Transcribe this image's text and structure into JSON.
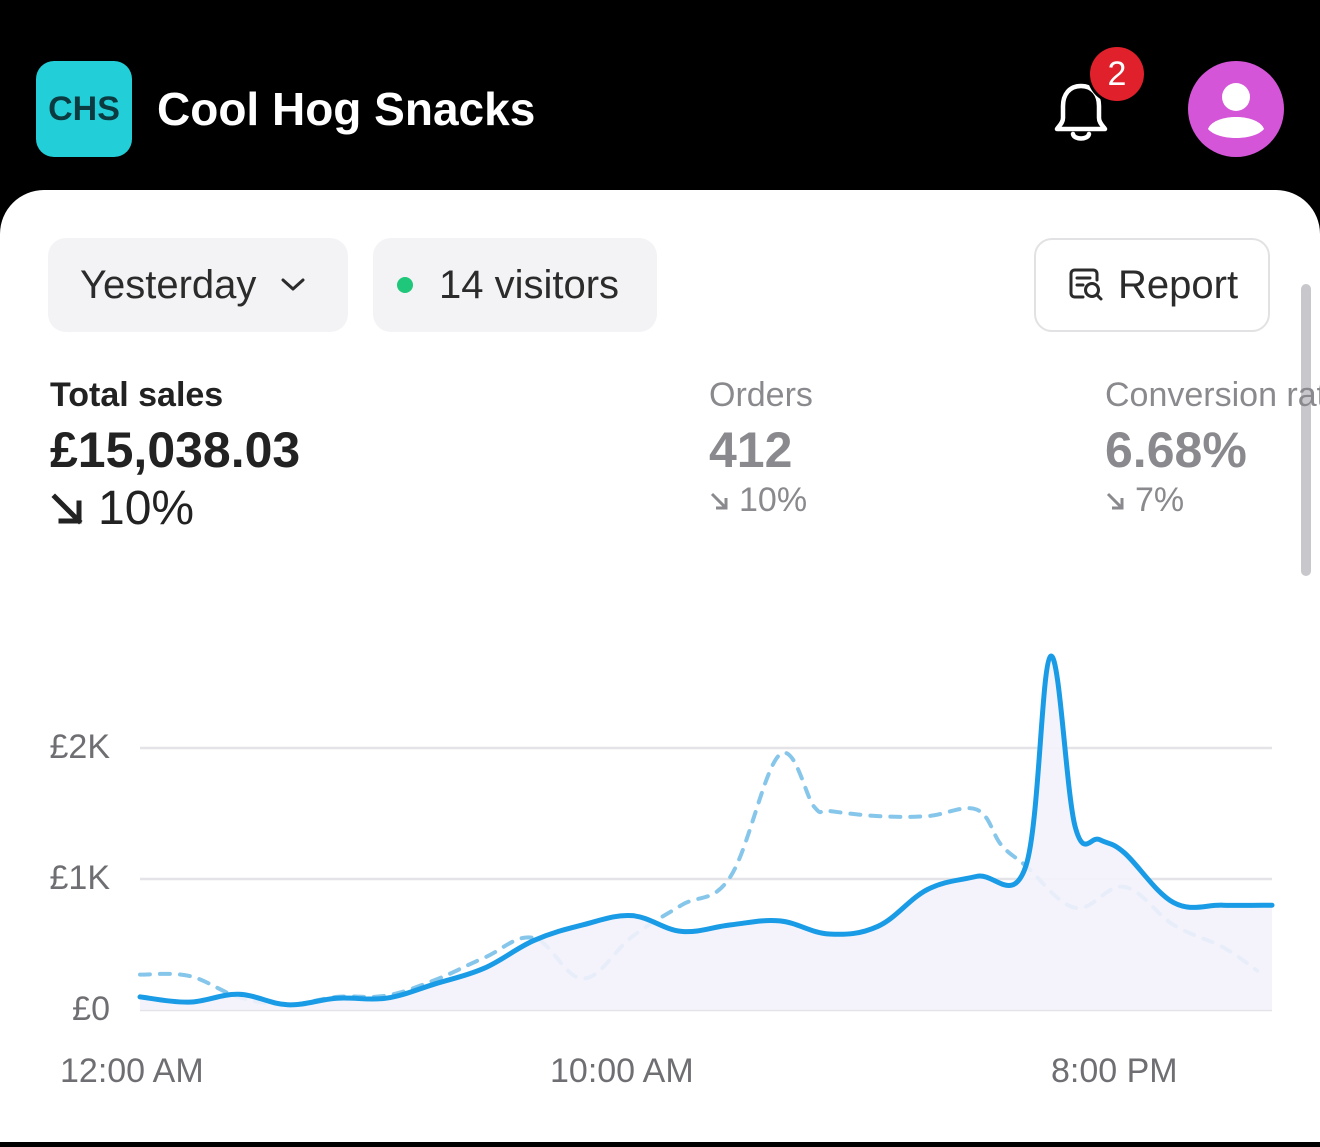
{
  "header": {
    "logo_text": "CHS",
    "store_name": "Cool Hog Snacks",
    "notification_count": "2",
    "bell_icon": "bell-icon",
    "avatar_icon": "user-avatar-icon"
  },
  "filters": {
    "date_range": "Yesterday",
    "visitors": "14 visitors",
    "report_label": "Report"
  },
  "metrics": {
    "total_sales": {
      "label": "Total sales",
      "value": "£15,038.03",
      "change": "10%"
    },
    "orders": {
      "label": "Orders",
      "value": "412",
      "change": "10%"
    },
    "conversion": {
      "label": "Conversion rate",
      "value": "6.68%",
      "change": "7%"
    }
  },
  "colors": {
    "current": "#1a9be6",
    "previous": "#86c6ea",
    "logo": "#22cfd9",
    "avatar": "#d455d8",
    "badge": "#e0202a",
    "live_dot": "#1fc77a"
  },
  "chart_data": {
    "type": "line",
    "y_ticks": [
      "£2K",
      "£1K",
      "£0"
    ],
    "y_tick_values": [
      2000,
      1000,
      0
    ],
    "x_ticks": [
      "12:00 AM",
      "10:00 AM",
      "8:00 PM"
    ],
    "ylim": [
      0,
      2000
    ],
    "xlim": [
      0,
      23
    ],
    "grid": true,
    "series": [
      {
        "style": "solid",
        "x": [
          0,
          1,
          2,
          3,
          4,
          5,
          6,
          7,
          8,
          9,
          10,
          11,
          12,
          13,
          14,
          15,
          16,
          17,
          18,
          18.5,
          19,
          19.5,
          20,
          21,
          22,
          23
        ],
        "values": [
          100,
          60,
          120,
          40,
          90,
          90,
          200,
          320,
          530,
          650,
          720,
          600,
          650,
          680,
          580,
          640,
          920,
          1020,
          1100,
          2700,
          1400,
          1300,
          1200,
          820,
          800,
          800
        ]
      },
      {
        "style": "dashed",
        "x": [
          0,
          1,
          2,
          3,
          4,
          5,
          6,
          7,
          8,
          9,
          10,
          11,
          12,
          13,
          13.7,
          14,
          15,
          16,
          17,
          17.5,
          18,
          19,
          20,
          21,
          22,
          22.7
        ],
        "values": [
          270,
          260,
          100,
          40,
          100,
          110,
          230,
          400,
          550,
          240,
          560,
          800,
          1020,
          1950,
          1550,
          1520,
          1480,
          1480,
          1530,
          1260,
          1100,
          780,
          940,
          650,
          480,
          300
        ]
      }
    ]
  }
}
